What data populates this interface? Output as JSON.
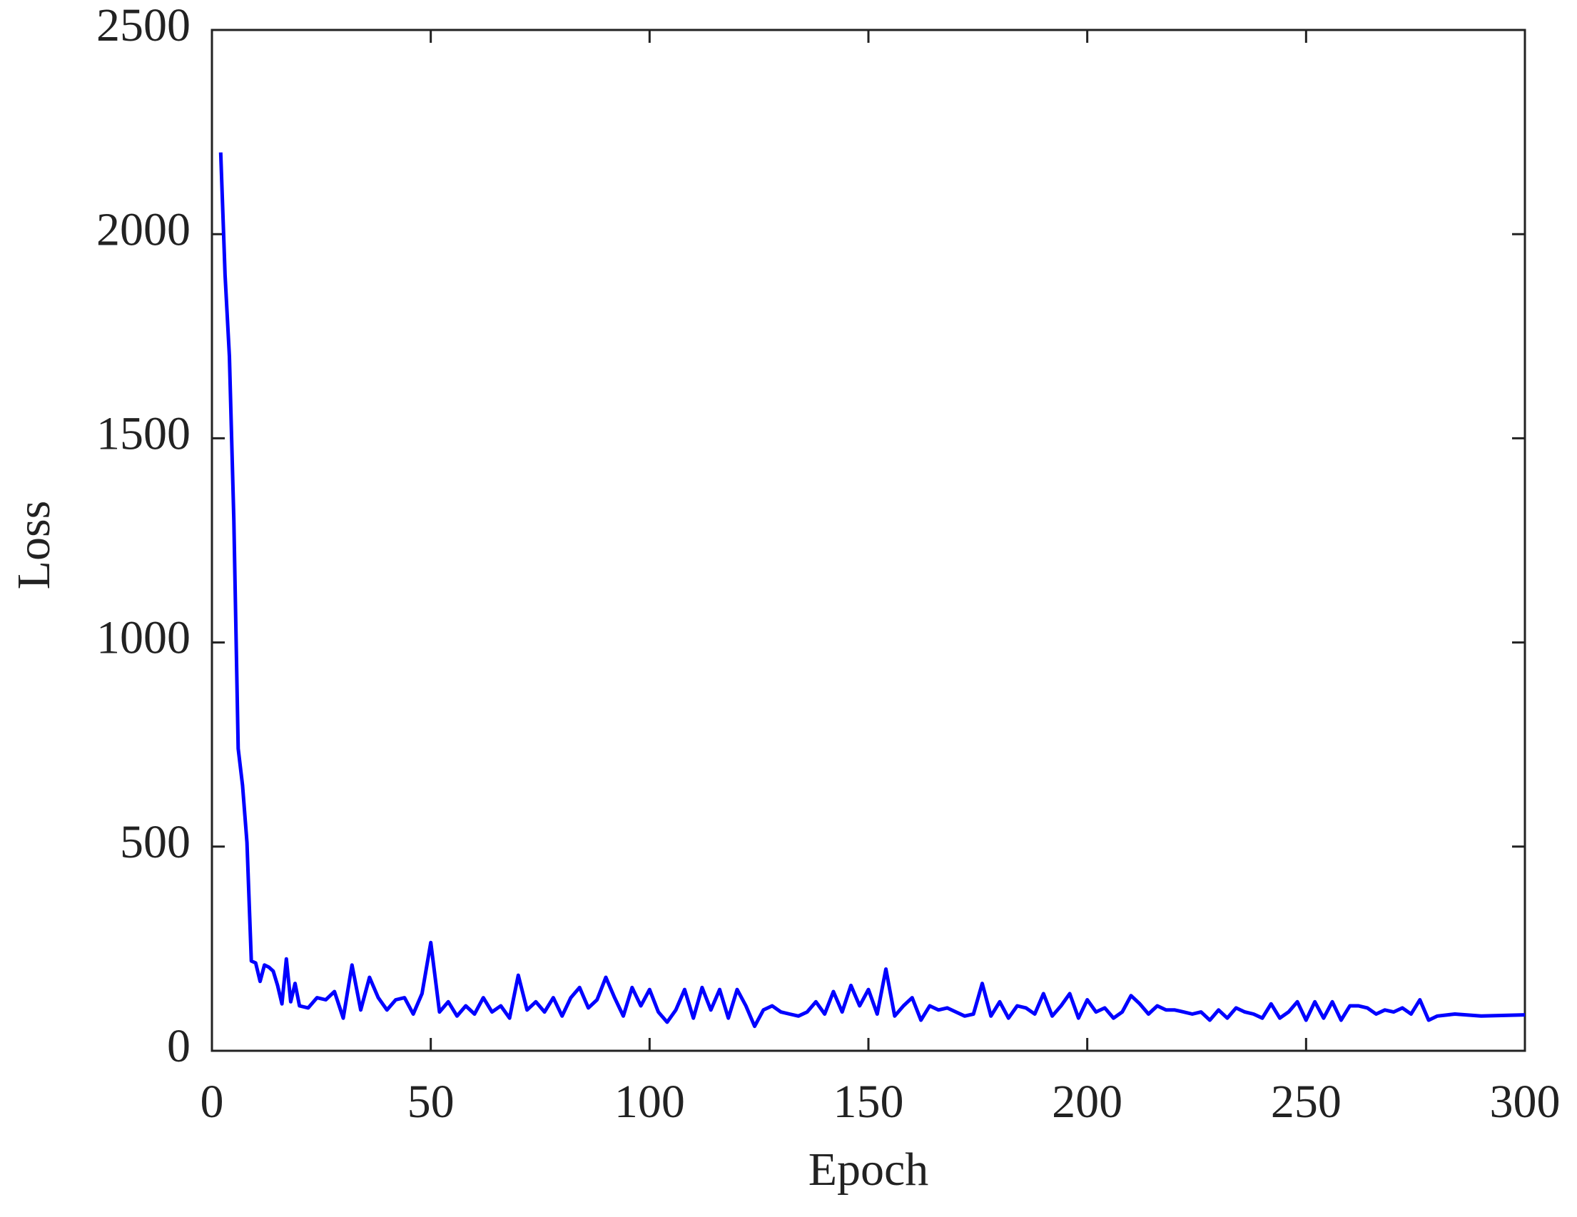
{
  "chart_data": {
    "type": "line",
    "xlabel": "Epoch",
    "ylabel": "Loss",
    "xlim": [
      0,
      300
    ],
    "xticks": [
      0,
      50,
      100,
      150,
      200,
      250,
      300
    ],
    "ylim": [
      0,
      2500
    ],
    "yticks": [
      0,
      500,
      1000,
      1500,
      2000,
      2500
    ],
    "x": [
      2,
      3,
      4,
      5,
      6,
      7,
      8,
      9,
      10,
      11,
      12,
      13,
      14,
      15,
      16,
      17,
      18,
      19,
      20,
      22,
      24,
      26,
      28,
      30,
      32,
      34,
      36,
      38,
      40,
      42,
      44,
      46,
      48,
      50,
      52,
      54,
      56,
      58,
      60,
      62,
      64,
      66,
      68,
      70,
      72,
      74,
      76,
      78,
      80,
      82,
      84,
      86,
      88,
      90,
      92,
      94,
      96,
      98,
      100,
      102,
      104,
      106,
      108,
      110,
      112,
      114,
      116,
      118,
      120,
      122,
      124,
      126,
      128,
      130,
      132,
      134,
      136,
      138,
      140,
      142,
      144,
      146,
      148,
      150,
      152,
      154,
      156,
      158,
      160,
      162,
      164,
      166,
      168,
      170,
      172,
      174,
      176,
      178,
      180,
      182,
      184,
      186,
      188,
      190,
      192,
      194,
      196,
      198,
      200,
      202,
      204,
      206,
      208,
      210,
      212,
      214,
      216,
      218,
      220,
      222,
      224,
      226,
      228,
      230,
      232,
      234,
      236,
      238,
      240,
      242,
      244,
      246,
      248,
      250,
      252,
      254,
      256,
      258,
      260,
      262,
      264,
      266,
      268,
      270,
      272,
      274,
      276,
      278,
      280,
      284,
      290,
      300
    ],
    "series": [
      {
        "name": "Loss",
        "color": "#0000ff",
        "values": [
          2200,
          1900,
          1700,
          1300,
          740,
          650,
          510,
          220,
          215,
          170,
          210,
          205,
          195,
          160,
          115,
          225,
          120,
          165,
          110,
          105,
          130,
          125,
          145,
          80,
          210,
          100,
          180,
          130,
          100,
          125,
          130,
          90,
          140,
          265,
          95,
          120,
          85,
          110,
          90,
          130,
          95,
          110,
          80,
          185,
          100,
          120,
          95,
          130,
          85,
          130,
          155,
          105,
          125,
          180,
          130,
          85,
          155,
          110,
          150,
          95,
          70,
          100,
          150,
          80,
          155,
          100,
          150,
          80,
          150,
          110,
          60,
          100,
          110,
          95,
          90,
          85,
          95,
          120,
          90,
          145,
          95,
          160,
          110,
          150,
          90,
          200,
          85,
          110,
          130,
          75,
          110,
          100,
          105,
          95,
          85,
          90,
          165,
          85,
          120,
          80,
          110,
          105,
          90,
          140,
          85,
          110,
          140,
          80,
          125,
          95,
          105,
          80,
          95,
          135,
          115,
          90,
          110,
          100,
          100,
          95,
          90,
          95,
          75,
          100,
          80,
          105,
          95,
          90,
          80,
          115,
          80,
          95,
          120,
          75,
          120,
          80,
          120,
          75,
          110,
          110,
          105,
          90,
          100,
          95,
          105,
          90,
          125,
          75,
          85,
          90,
          85,
          88
        ]
      }
    ]
  }
}
